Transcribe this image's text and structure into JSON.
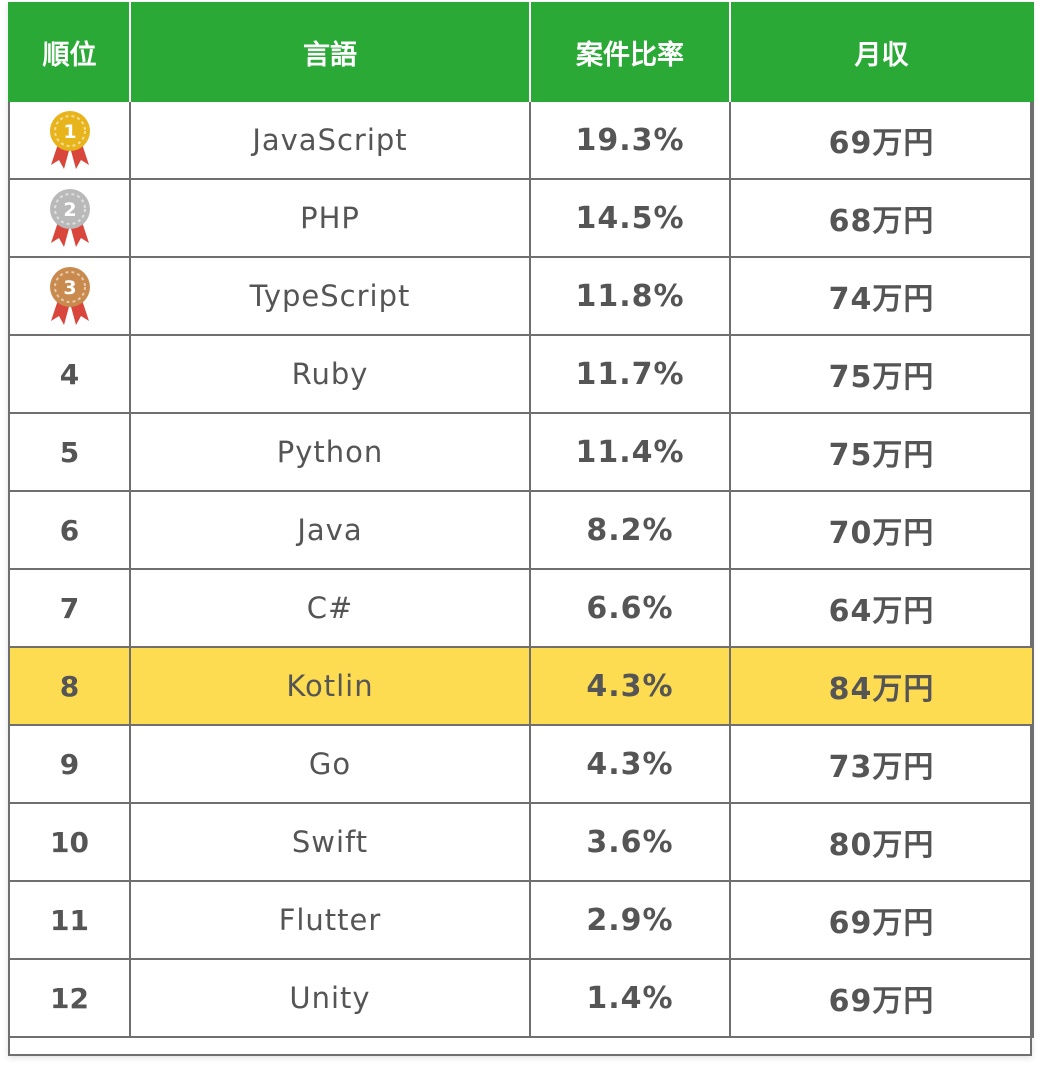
{
  "table": {
    "headers": {
      "rank": "順位",
      "language": "言語",
      "share": "案件比率",
      "income": "月収"
    },
    "medal_colors": {
      "gold": "#e8b41c",
      "silver": "#b9b9b9",
      "bronze": "#c98a4e",
      "ribbon": "#d9463c"
    },
    "highlight_color": "#fedc52",
    "header_color": "#2aa937",
    "rows": [
      {
        "rank": "1",
        "medal": "gold-medal-icon",
        "language": "JavaScript",
        "share": "19.3%",
        "income": "69万円"
      },
      {
        "rank": "2",
        "medal": "silver-medal-icon",
        "language": "PHP",
        "share": "14.5%",
        "income": "68万円"
      },
      {
        "rank": "3",
        "medal": "bronze-medal-icon",
        "language": "TypeScript",
        "share": "11.8%",
        "income": "74万円"
      },
      {
        "rank": "4",
        "language": "Ruby",
        "share": "11.7%",
        "income": "75万円"
      },
      {
        "rank": "5",
        "language": "Python",
        "share": "11.4%",
        "income": "75万円"
      },
      {
        "rank": "6",
        "language": "Java",
        "share": "8.2%",
        "income": "70万円"
      },
      {
        "rank": "7",
        "language": "C#",
        "share": "6.6%",
        "income": "64万円"
      },
      {
        "rank": "8",
        "language": "Kotlin",
        "share": "4.3%",
        "income": "84万円",
        "highlighted": true
      },
      {
        "rank": "9",
        "language": "Go",
        "share": "4.3%",
        "income": "73万円"
      },
      {
        "rank": "10",
        "language": "Swift",
        "share": "3.6%",
        "income": "80万円"
      },
      {
        "rank": "11",
        "language": "Flutter",
        "share": "2.9%",
        "income": "69万円"
      },
      {
        "rank": "12",
        "language": "Unity",
        "share": "1.4%",
        "income": "69万円"
      }
    ]
  }
}
